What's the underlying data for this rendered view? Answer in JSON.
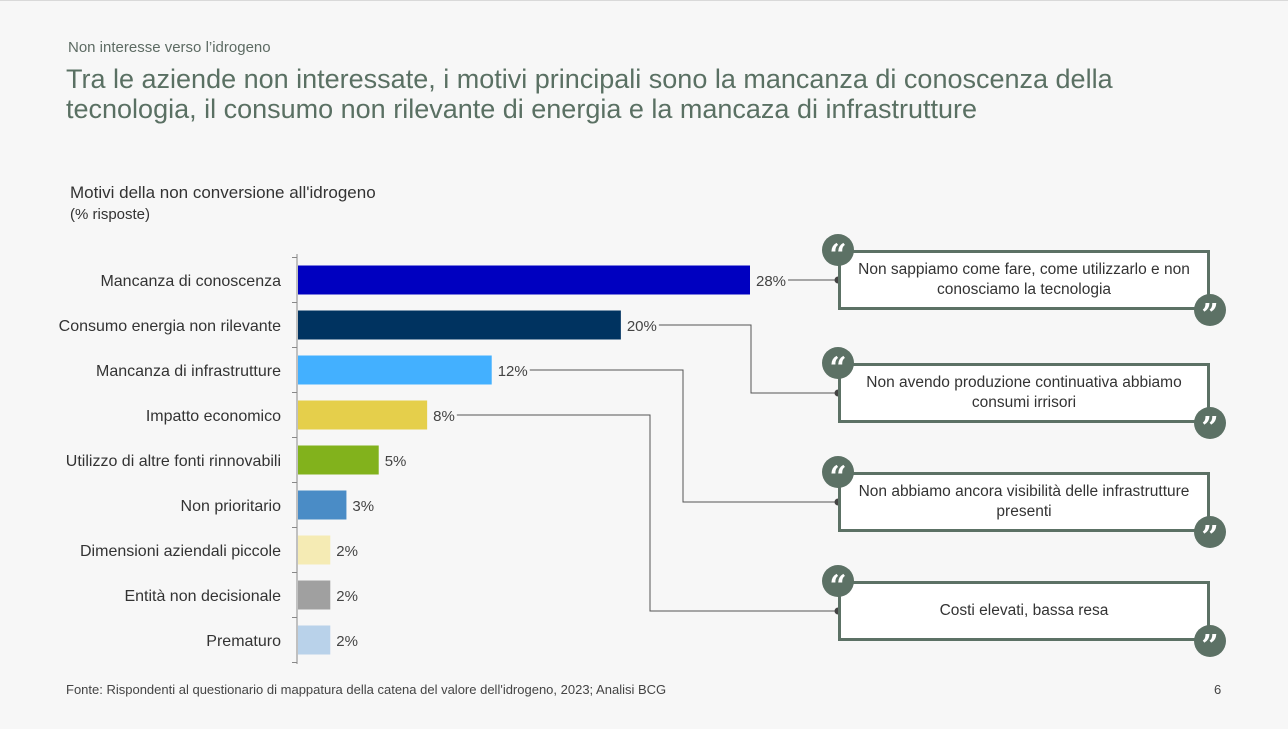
{
  "header": {
    "kicker": "Non interesse verso l’idrogeno",
    "headline": "Tra le aziende non interessate, i motivi principali sono la mancanza di conoscenza della tecnologia, il consumo non rilevante di energia e la mancaza di infrastrutture"
  },
  "chart_data": {
    "type": "bar",
    "orientation": "horizontal",
    "title": "Motivi della non conversione all'idrogeno",
    "subtitle": "(% risposte)",
    "categories": [
      "Mancanza di conoscenza",
      "Consumo energia non rilevante",
      "Mancanza di infrastrutture",
      "Impatto economico",
      "Utilizzo di altre fonti rinnovabili",
      "Non prioritario",
      "Dimensioni aziendali piccole",
      "Entità non decisionale",
      "Prematuro"
    ],
    "values": [
      28,
      20,
      12,
      8,
      5,
      3,
      2,
      2,
      2
    ],
    "value_labels": [
      "28%",
      "20%",
      "12%",
      "8%",
      "5%",
      "3%",
      "2%",
      "2%",
      "2%"
    ],
    "colors": [
      "#0000c0",
      "#003360",
      "#43b0ff",
      "#e5cf4b",
      "#82b21c",
      "#4a8cc6",
      "#f5ebb4",
      "#a0a0a0",
      "#b9d2ea"
    ],
    "xlim": [
      0,
      28
    ],
    "grid": false,
    "legend": "none"
  },
  "quotes": [
    {
      "text": "Non sappiamo come fare, come utilizzarlo e non conosciamo la tecnologia",
      "category_index": 0
    },
    {
      "text": "Non avendo produzione continuativa abbiamo consumi irrisori",
      "category_index": 1
    },
    {
      "text": "Non abbiamo ancora visibilità delle infrastrutture presenti",
      "category_index": 2
    },
    {
      "text": "Costi elevati, bassa resa",
      "category_index": 3
    }
  ],
  "quote_marks": {
    "open": "“",
    "close": "”"
  },
  "colors": {
    "accent": "#5c7165",
    "headline": "#5a7063"
  },
  "footer": {
    "source": "Fonte: Rispondenti al questionario di mappatura della catena del valore dell'idrogeno, 2023; Analisi BCG",
    "page_number": "6"
  }
}
